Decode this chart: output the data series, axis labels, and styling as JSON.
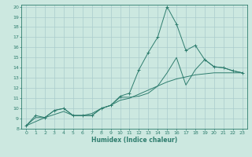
{
  "xlabel": "Humidex (Indice chaleur)",
  "bg_color": "#cce8e0",
  "line_color": "#2e7d6e",
  "grid_color": "#aacccc",
  "xlim": [
    -0.5,
    23.5
  ],
  "ylim": [
    8,
    20.2
  ],
  "xticks": [
    0,
    1,
    2,
    3,
    4,
    5,
    6,
    7,
    8,
    9,
    10,
    11,
    12,
    13,
    14,
    15,
    16,
    17,
    18,
    19,
    20,
    21,
    22,
    23
  ],
  "yticks": [
    8,
    9,
    10,
    11,
    12,
    13,
    14,
    15,
    16,
    17,
    18,
    19,
    20
  ],
  "series1_x": [
    0,
    1,
    2,
    3,
    4,
    5,
    6,
    7,
    8,
    9,
    10,
    11,
    12,
    13,
    14,
    15,
    16,
    17,
    18,
    19,
    20,
    21,
    22,
    23
  ],
  "series1_y": [
    8.3,
    9.3,
    9.1,
    9.8,
    10.0,
    9.3,
    9.3,
    9.3,
    10.0,
    10.3,
    11.2,
    11.5,
    13.8,
    15.5,
    17.0,
    20.0,
    18.3,
    15.7,
    16.2,
    14.8,
    14.1,
    14.0,
    13.7,
    13.5
  ],
  "series2_x": [
    0,
    2,
    3,
    4,
    5,
    6,
    7,
    8,
    9,
    10,
    11,
    12,
    13,
    14,
    15,
    16,
    17,
    18,
    19,
    20,
    21,
    22,
    23
  ],
  "series2_y": [
    8.3,
    9.1,
    9.8,
    10.0,
    9.3,
    9.3,
    9.3,
    10.0,
    10.3,
    11.1,
    11.1,
    11.2,
    11.5,
    12.2,
    13.5,
    15.0,
    12.3,
    13.8,
    14.8,
    14.1,
    14.0,
    13.7,
    13.5
  ],
  "series3_x": [
    0,
    1,
    2,
    3,
    4,
    5,
    6,
    7,
    8,
    9,
    10,
    11,
    12,
    13,
    14,
    15,
    16,
    17,
    18,
    19,
    20,
    21,
    22,
    23
  ],
  "series3_y": [
    8.3,
    9.1,
    9.1,
    9.4,
    9.7,
    9.3,
    9.3,
    9.5,
    10.0,
    10.3,
    10.8,
    11.0,
    11.4,
    11.8,
    12.2,
    12.6,
    12.9,
    13.1,
    13.3,
    13.4,
    13.5,
    13.5,
    13.5,
    13.5
  ]
}
